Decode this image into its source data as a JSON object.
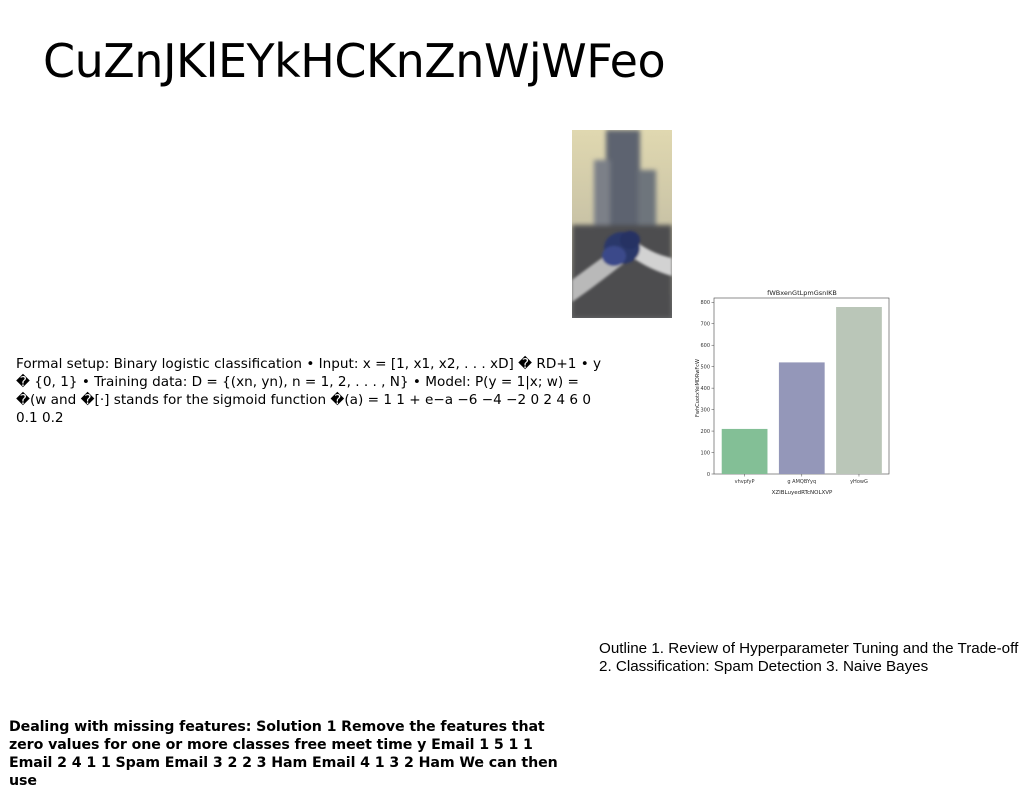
{
  "slide": {
    "title": "CuZnJKlEYkHCKnZnWjWFeo",
    "setup_text": "Formal setup: Binary logistic classification • Input: x = [1, x1, x2, . . . xD] � RD+1 • y � {0, 1} • Training data: D = {(xn, yn), n = 1, 2, . . . , N} • Model: P(y = 1|x; w) = �(w and �[·] stands for the sigmoid function �(a) = 1 1 + e−a −6 −4 −2 0 2 4 6 0 0.1 0.2",
    "outline_text": "Outline 1. Review of Hyperparameter Tuning and the Trade-off 2. Classification: Spam Detection 3. Naive Bayes",
    "missing_text": "Dealing with missing features: Solution 1 Remove the features that zero values for one or more classes free meet time y Email 1 5 1 1 Email 2 4 1 1 Spam Email 3 2 2 3 Ham Email 4 1 3 2 Ham We can then use"
  },
  "photo": {
    "colors": {
      "sky": "#d9d0a6",
      "tower": "#5c6470",
      "glove": "#2e3a6e",
      "arm": "#bfbfbf"
    }
  },
  "chart_data": {
    "type": "bar",
    "title": "fWBxenGtLpmGsnIKB",
    "xlabel": "XZIBLuyedRTcNOLXVP",
    "ylabel": "FwhCuotxYeiMDRwFcW",
    "categories": [
      "vhvpfyP",
      "g AMQBYyq",
      "yHowG"
    ],
    "values": [
      210,
      520,
      778
    ],
    "colors": [
      "#83bf96",
      "#9497b9",
      "#bac6b8"
    ],
    "ylim": [
      0,
      820
    ],
    "yticks": [
      0,
      100,
      200,
      300,
      400,
      500,
      600,
      700,
      800
    ],
    "grid": false
  }
}
